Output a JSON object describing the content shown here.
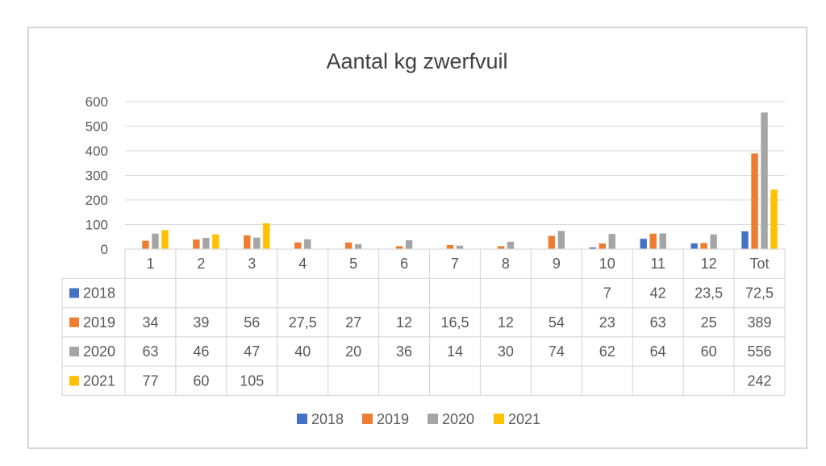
{
  "colors": {
    "2018": "#4472c4",
    "2019": "#ed7d31",
    "2020": "#a5a5a5",
    "2021": "#ffc000",
    "grid": "#d9d9d9",
    "border": "#c8c8c8",
    "text": "#595959",
    "title": "#404040"
  },
  "chart_data": {
    "type": "bar",
    "title": "Aantal kg zwerfvuil",
    "categories": [
      "1",
      "2",
      "3",
      "4",
      "5",
      "6",
      "7",
      "8",
      "9",
      "10",
      "11",
      "12",
      "Tot"
    ],
    "ylim": [
      0,
      600
    ],
    "yticks": [
      0,
      100,
      200,
      300,
      400,
      500,
      600
    ],
    "grid": true,
    "legend_position": "bottom",
    "data_table": true,
    "series": [
      {
        "name": "2018",
        "values": [
          null,
          null,
          null,
          null,
          null,
          null,
          null,
          null,
          null,
          7,
          42,
          23.5,
          72.5
        ],
        "labels": [
          "",
          "",
          "",
          "",
          "",
          "",
          "",
          "",
          "",
          "7",
          "42",
          "23,5",
          "72,5"
        ]
      },
      {
        "name": "2019",
        "values": [
          34,
          39,
          56,
          27.5,
          27,
          12,
          16.5,
          12,
          54,
          23,
          63,
          25,
          389
        ],
        "labels": [
          "34",
          "39",
          "56",
          "27,5",
          "27",
          "12",
          "16,5",
          "12",
          "54",
          "23",
          "63",
          "25",
          "389"
        ]
      },
      {
        "name": "2020",
        "values": [
          63,
          46,
          47,
          40,
          20,
          36,
          14,
          30,
          74,
          62,
          64,
          60,
          556
        ],
        "labels": [
          "63",
          "46",
          "47",
          "40",
          "20",
          "36",
          "14",
          "30",
          "74",
          "62",
          "64",
          "60",
          "556"
        ]
      },
      {
        "name": "2021",
        "values": [
          77,
          60,
          105,
          null,
          null,
          null,
          null,
          null,
          null,
          null,
          null,
          null,
          242
        ],
        "labels": [
          "77",
          "60",
          "105",
          "",
          "",
          "",
          "",
          "",
          "",
          "",
          "",
          "",
          "242"
        ]
      }
    ]
  }
}
